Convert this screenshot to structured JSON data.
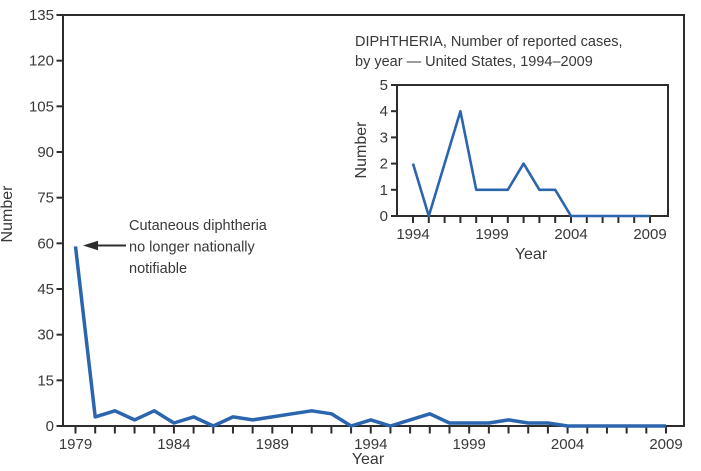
{
  "colors": {
    "line": "#2b65ad",
    "axis": "#2e2c2d",
    "text": "#3a3839"
  },
  "chart_data": [
    {
      "type": "line",
      "series_name": "Diphtheria, number of reported cases by year, United States",
      "xlabel": "Year",
      "ylabel": "Number",
      "ylim": [
        0,
        135
      ],
      "x_range": [
        1979,
        2009
      ],
      "y_ticks": [
        0,
        15,
        30,
        45,
        60,
        75,
        90,
        105,
        120,
        135
      ],
      "x_tick_labels": [
        1979,
        1984,
        1989,
        1994,
        1999,
        2004,
        2009
      ],
      "grid": false,
      "legend": "none",
      "annotation": "Cutaneous diphtheria no longer nationally notifiable",
      "annotation_lines": [
        "Cutaneous diphtheria",
        "no longer nationally",
        "notifiable"
      ],
      "x": [
        1979,
        1980,
        1981,
        1982,
        1983,
        1984,
        1985,
        1986,
        1987,
        1988,
        1989,
        1990,
        1991,
        1992,
        1993,
        1994,
        1995,
        1996,
        1997,
        1998,
        1999,
        2000,
        2001,
        2002,
        2003,
        2004,
        2005,
        2006,
        2007,
        2008,
        2009
      ],
      "values": [
        59,
        3,
        5,
        2,
        5,
        1,
        3,
        0,
        3,
        2,
        3,
        4,
        5,
        4,
        0,
        2,
        0,
        2,
        4,
        1,
        1,
        1,
        2,
        1,
        1,
        0,
        0,
        0,
        0,
        0,
        0
      ]
    },
    {
      "type": "line",
      "series_name": "Diphtheria, number of reported cases by year (inset), United States 1994-2009",
      "title": "DIPHTHERIA, Number of reported cases, by year — United States, 1994–2009",
      "title_lines": [
        "DIPHTHERIA, Number of reported cases,",
        "by year — United States, 1994–2009"
      ],
      "xlabel": "Year",
      "ylabel": "Number",
      "ylim": [
        0,
        5
      ],
      "x_range": [
        1994,
        2009
      ],
      "y_ticks": [
        0,
        1,
        2,
        3,
        4,
        5
      ],
      "x_tick_labels": [
        1994,
        1999,
        2004,
        2009
      ],
      "grid": false,
      "legend": "none",
      "x": [
        1994,
        1995,
        1996,
        1997,
        1998,
        1999,
        2000,
        2001,
        2002,
        2003,
        2004,
        2005,
        2006,
        2007,
        2008,
        2009
      ],
      "values": [
        2,
        0,
        2,
        4,
        1,
        1,
        1,
        2,
        1,
        1,
        0,
        0,
        0,
        0,
        0,
        0
      ]
    }
  ]
}
